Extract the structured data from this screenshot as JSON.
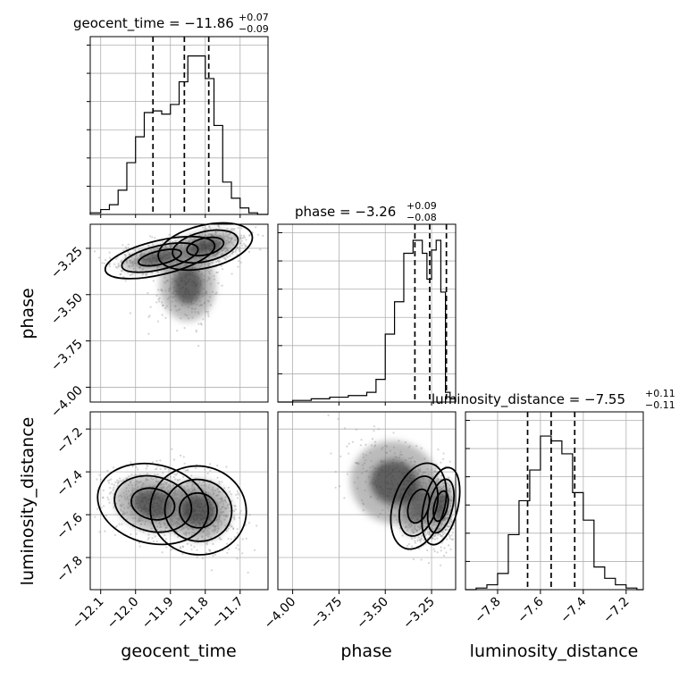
{
  "chart_data": {
    "type": "corner",
    "parameters": [
      "geocent_time",
      "phase",
      "luminosity_distance"
    ],
    "titles": [
      {
        "param": "geocent_time",
        "label": "geocent_time = ",
        "median": "−11.86",
        "plus": "+0.07",
        "minus": "−0.09"
      },
      {
        "param": "phase",
        "label": "phase = ",
        "median": "−3.26",
        "plus": "+0.09",
        "minus": "−0.08"
      },
      {
        "param": "luminosity_distance",
        "label": "luminosity_distance = ",
        "median": "−7.55",
        "plus": "+0.11",
        "minus": "−0.11"
      }
    ],
    "axis_ranges": {
      "geocent_time": [
        -12.13,
        -11.62
      ],
      "phase": [
        -4.08,
        -3.12
      ],
      "luminosity_distance": [
        -7.95,
        -7.12
      ]
    },
    "ticks": {
      "geocent_time": [
        "−12.1",
        "−12.0",
        "−11.9",
        "−11.8",
        "−11.7"
      ],
      "phase": [
        "−4.00",
        "−3.75",
        "−3.50",
        "−3.25"
      ],
      "luminosity_distance": [
        "−7.8",
        "−7.6",
        "−7.4",
        "−7.2"
      ]
    },
    "tick_values": {
      "geocent_time": [
        -12.1,
        -12.0,
        -11.9,
        -11.8,
        -11.7
      ],
      "phase": [
        -4.0,
        -3.75,
        -3.5,
        -3.25
      ],
      "luminosity_distance": [
        -7.8,
        -7.6,
        -7.4,
        -7.2
      ]
    },
    "quantile_lines": {
      "geocent_time": [
        -11.95,
        -11.86,
        -11.79
      ],
      "phase": [
        -3.34,
        -3.26,
        -3.17
      ],
      "luminosity_distance": [
        -7.66,
        -7.55,
        -7.44
      ]
    },
    "histograms": {
      "geocent_time": {
        "edges": [
          -12.13,
          -12.1,
          -12.075,
          -12.05,
          -12.025,
          -12.0,
          -11.975,
          -11.95,
          -11.925,
          -11.9,
          -11.875,
          -11.85,
          -11.825,
          -11.8,
          -11.775,
          -11.75,
          -11.725,
          -11.7,
          -11.675,
          -11.65,
          -11.62
        ],
        "counts": [
          0.01,
          0.03,
          0.06,
          0.15,
          0.32,
          0.48,
          0.63,
          0.64,
          0.62,
          0.68,
          0.82,
          0.98,
          0.98,
          0.84,
          0.55,
          0.2,
          0.1,
          0.04,
          0.01,
          0.0
        ]
      },
      "phase": {
        "edges": [
          -4.08,
          -4.0,
          -3.9,
          -3.8,
          -3.7,
          -3.6,
          -3.55,
          -3.5,
          -3.45,
          -3.4,
          -3.35,
          -3.3,
          -3.275,
          -3.25,
          -3.225,
          -3.2,
          -3.175,
          -3.15,
          -3.12
        ],
        "counts": [
          0.0,
          0.01,
          0.02,
          0.03,
          0.04,
          0.06,
          0.14,
          0.42,
          0.62,
          0.92,
          1.0,
          0.92,
          0.76,
          0.94,
          1.0,
          0.68,
          0.06,
          0.02
        ]
      },
      "luminosity_distance": {
        "edges": [
          -7.95,
          -7.9,
          -7.85,
          -7.8,
          -7.75,
          -7.7,
          -7.65,
          -7.6,
          -7.55,
          -7.5,
          -7.45,
          -7.4,
          -7.35,
          -7.3,
          -7.25,
          -7.2,
          -7.15,
          -7.12
        ],
        "counts": [
          0.0,
          0.01,
          0.03,
          0.1,
          0.34,
          0.55,
          0.74,
          0.95,
          0.92,
          0.84,
          0.6,
          0.43,
          0.14,
          0.07,
          0.03,
          0.01,
          0.0
        ]
      }
    },
    "grid": true
  }
}
